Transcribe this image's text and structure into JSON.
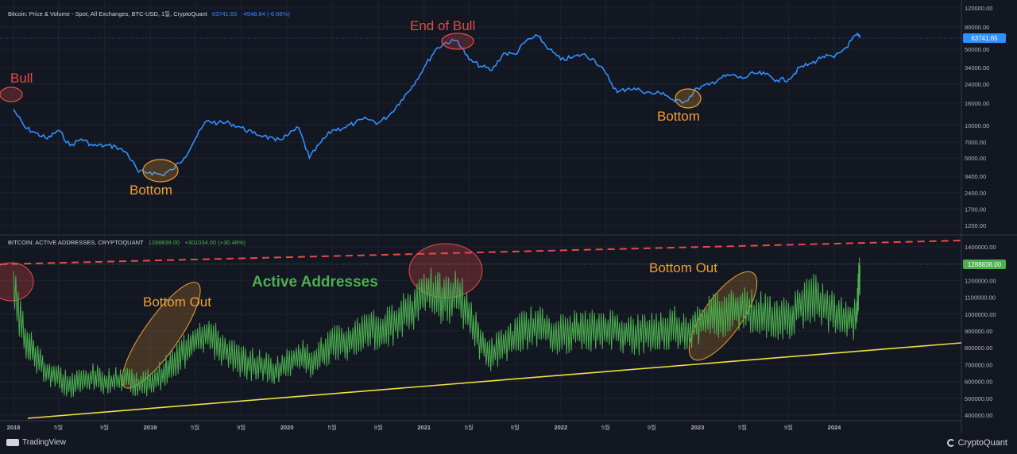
{
  "top_header": {
    "title": "Bitcoin: Price & Volume - Spot, All Exchanges, BTC-USD, 1일, CryptoQuant",
    "value": "63741.65",
    "change": "-4548.84 (-6.66%)"
  },
  "bottom_header": {
    "title": "BITCOIN: ACTIVE ADDRESSES, CRYPTOQUANT",
    "value": "1288838.00",
    "change": "+301034.00 (+30.48%)"
  },
  "annotations": {
    "bull": "Bull",
    "end_of_bull": "End of Bull",
    "bottom_2019": "Bottom",
    "bottom_2023": "Bottom",
    "bottom_out_2019": "Bottom Out",
    "bottom_out_2023": "Bottom Out",
    "active_addresses": "Active Addresses"
  },
  "footer": {
    "tradingview": "TradingView",
    "cryptoquant": "CryptoQuant"
  },
  "colors": {
    "background": "#131722",
    "price_line": "#2f8fff",
    "active_line": "#4caf50",
    "annotation_red": "#e84a4a",
    "annotation_orange": "#f0a030",
    "annotation_green": "#4caf50",
    "support_line": "#f0e040",
    "resistance_line": "#e84a4a"
  },
  "chart_data": [
    {
      "type": "line",
      "title": "Bitcoin: Price & Volume - Spot, All Exchanges, BTC-USD, 1일, CryptoQuant",
      "scale": "log",
      "ylim": [
        1000,
        120000
      ],
      "y_ticks": [
        "120000.00",
        "80000.00",
        "50000.00",
        "34000.00",
        "24000.00",
        "16000.00",
        "10000.00",
        "7000.00",
        "5000.00",
        "3400.00",
        "2400.00",
        "1700.00",
        "1200.00"
      ],
      "last_value_label": "63741.65",
      "series": [
        {
          "points": [
            [
              "2018-01-01",
              14000
            ],
            [
              "2018-02-01",
              9500
            ],
            [
              "2018-03-01",
              8500
            ],
            [
              "2018-04-01",
              7500
            ],
            [
              "2018-05-01",
              9000
            ],
            [
              "2018-06-01",
              6500
            ],
            [
              "2018-07-01",
              7500
            ],
            [
              "2018-08-01",
              6500
            ],
            [
              "2018-09-01",
              6500
            ],
            [
              "2018-10-01",
              6400
            ],
            [
              "2018-11-01",
              5500
            ],
            [
              "2018-12-01",
              3700
            ],
            [
              "2019-01-01",
              3700
            ],
            [
              "2019-02-01",
              3500
            ],
            [
              "2019-03-01",
              3900
            ],
            [
              "2019-04-01",
              5000
            ],
            [
              "2019-05-01",
              7500
            ],
            [
              "2019-06-01",
              11000
            ],
            [
              "2019-07-01",
              10500
            ],
            [
              "2019-08-01",
              10500
            ],
            [
              "2019-09-01",
              9500
            ],
            [
              "2019-10-01",
              8500
            ],
            [
              "2019-11-01",
              8000
            ],
            [
              "2019-12-01",
              7200
            ],
            [
              "2020-01-01",
              8000
            ],
            [
              "2020-02-01",
              9500
            ],
            [
              "2020-03-01",
              5000
            ],
            [
              "2020-04-01",
              7000
            ],
            [
              "2020-05-01",
              9000
            ],
            [
              "2020-06-01",
              9500
            ],
            [
              "2020-07-01",
              10500
            ],
            [
              "2020-08-01",
              11500
            ],
            [
              "2020-09-01",
              10500
            ],
            [
              "2020-10-01",
              12500
            ],
            [
              "2020-11-01",
              17000
            ],
            [
              "2020-12-01",
              23000
            ],
            [
              "2021-01-01",
              34000
            ],
            [
              "2021-02-01",
              50000
            ],
            [
              "2021-03-01",
              58000
            ],
            [
              "2021-04-01",
              60000
            ],
            [
              "2021-05-01",
              40000
            ],
            [
              "2021-06-01",
              35000
            ],
            [
              "2021-07-01",
              32000
            ],
            [
              "2021-08-01",
              46000
            ],
            [
              "2021-09-01",
              45000
            ],
            [
              "2021-10-01",
              60000
            ],
            [
              "2021-11-01",
              66000
            ],
            [
              "2021-12-01",
              50000
            ],
            [
              "2022-01-01",
              40000
            ],
            [
              "2022-02-01",
              42000
            ],
            [
              "2022-03-01",
              45000
            ],
            [
              "2022-04-01",
              40000
            ],
            [
              "2022-05-01",
              30000
            ],
            [
              "2022-06-01",
              20000
            ],
            [
              "2022-07-01",
              22000
            ],
            [
              "2022-08-01",
              21000
            ],
            [
              "2022-09-01",
              19500
            ],
            [
              "2022-10-01",
              20000
            ],
            [
              "2022-11-01",
              16500
            ],
            [
              "2022-12-01",
              16800
            ],
            [
              "2023-01-01",
              22000
            ],
            [
              "2023-02-01",
              23500
            ],
            [
              "2023-03-01",
              27000
            ],
            [
              "2023-04-01",
              29000
            ],
            [
              "2023-05-01",
              27000
            ],
            [
              "2023-06-01",
              30000
            ],
            [
              "2023-07-01",
              29500
            ],
            [
              "2023-08-01",
              26000
            ],
            [
              "2023-09-01",
              26500
            ],
            [
              "2023-10-01",
              34000
            ],
            [
              "2023-11-01",
              37000
            ],
            [
              "2023-12-01",
              43000
            ],
            [
              "2024-01-01",
              42000
            ],
            [
              "2024-02-01",
              52000
            ],
            [
              "2024-03-01",
              68000
            ],
            [
              "2024-03-10",
              63741.65
            ]
          ]
        }
      ]
    },
    {
      "type": "line",
      "title": "BITCOIN: ACTIVE ADDRESSES, CRYPTOQUANT",
      "ylim": [
        390000,
        1450000
      ],
      "y_ticks": [
        "1400000.00",
        "1300000.00",
        "1200000.00",
        "1100000.00",
        "1000000.00",
        "900000.00",
        "800000.00",
        "700000.00",
        "600000.00",
        "500000.00",
        "400000.00"
      ],
      "last_value_label": "1288838.00",
      "series": [
        {
          "points": [
            [
              "2018-01-01",
              1150000
            ],
            [
              "2018-02-01",
              850000
            ],
            [
              "2018-03-01",
              750000
            ],
            [
              "2018-04-01",
              650000
            ],
            [
              "2018-05-01",
              620000
            ],
            [
              "2018-06-01",
              580000
            ],
            [
              "2018-07-01",
              600000
            ],
            [
              "2018-08-01",
              620000
            ],
            [
              "2018-09-01",
              600000
            ],
            [
              "2018-10-01",
              600000
            ],
            [
              "2018-11-01",
              620000
            ],
            [
              "2018-12-01",
              580000
            ],
            [
              "2019-01-01",
              600000
            ],
            [
              "2019-02-01",
              640000
            ],
            [
              "2019-03-01",
              700000
            ],
            [
              "2019-04-01",
              780000
            ],
            [
              "2019-05-01",
              850000
            ],
            [
              "2019-06-01",
              880000
            ],
            [
              "2019-07-01",
              820000
            ],
            [
              "2019-08-01",
              760000
            ],
            [
              "2019-09-01",
              720000
            ],
            [
              "2019-10-01",
              700000
            ],
            [
              "2019-11-01",
              690000
            ],
            [
              "2019-12-01",
              660000
            ],
            [
              "2020-01-01",
              700000
            ],
            [
              "2020-02-01",
              760000
            ],
            [
              "2020-03-01",
              720000
            ],
            [
              "2020-04-01",
              760000
            ],
            [
              "2020-05-01",
              820000
            ],
            [
              "2020-06-01",
              820000
            ],
            [
              "2020-07-01",
              860000
            ],
            [
              "2020-08-01",
              930000
            ],
            [
              "2020-09-01",
              900000
            ],
            [
              "2020-10-01",
              920000
            ],
            [
              "2020-11-01",
              1000000
            ],
            [
              "2020-12-01",
              1020000
            ],
            [
              "2021-01-01",
              1150000
            ],
            [
              "2021-02-01",
              1100000
            ],
            [
              "2021-03-01",
              1080000
            ],
            [
              "2021-04-01",
              1120000
            ],
            [
              "2021-05-01",
              1000000
            ],
            [
              "2021-06-01",
              820000
            ],
            [
              "2021-07-01",
              760000
            ],
            [
              "2021-08-01",
              820000
            ],
            [
              "2021-09-01",
              860000
            ],
            [
              "2021-10-01",
              920000
            ],
            [
              "2021-11-01",
              920000
            ],
            [
              "2021-12-01",
              900000
            ],
            [
              "2022-01-01",
              880000
            ],
            [
              "2022-02-01",
              900000
            ],
            [
              "2022-03-01",
              900000
            ],
            [
              "2022-04-01",
              900000
            ],
            [
              "2022-05-01",
              920000
            ],
            [
              "2022-06-01",
              900000
            ],
            [
              "2022-07-01",
              880000
            ],
            [
              "2022-08-01",
              880000
            ],
            [
              "2022-09-01",
              900000
            ],
            [
              "2022-10-01",
              900000
            ],
            [
              "2022-11-01",
              930000
            ],
            [
              "2022-12-01",
              880000
            ],
            [
              "2023-01-01",
              950000
            ],
            [
              "2023-02-01",
              980000
            ],
            [
              "2023-03-01",
              1000000
            ],
            [
              "2023-04-01",
              1020000
            ],
            [
              "2023-05-01",
              1050000
            ],
            [
              "2023-06-01",
              1000000
            ],
            [
              "2023-07-01",
              1000000
            ],
            [
              "2023-08-01",
              980000
            ],
            [
              "2023-09-01",
              960000
            ],
            [
              "2023-10-01",
              1050000
            ],
            [
              "2023-11-01",
              1100000
            ],
            [
              "2023-12-01",
              1050000
            ],
            [
              "2024-01-01",
              1000000
            ],
            [
              "2024-02-01",
              950000
            ],
            [
              "2024-03-01",
              1000000
            ],
            [
              "2024-03-10",
              1288838
            ]
          ]
        }
      ],
      "trendlines": [
        {
          "name": "support",
          "points": [
            [
              "2017-12-01",
              390000
            ],
            [
              "2024-11-01",
              840000
            ]
          ]
        },
        {
          "name": "resistance",
          "points": [
            [
              "2017-12-01",
              1290000
            ],
            [
              "2024-11-01",
              1440000
            ]
          ]
        }
      ]
    }
  ],
  "x_axis_ticks": [
    "2018",
    "5월",
    "9월",
    "2019",
    "5월",
    "9월",
    "2020",
    "5월",
    "9월",
    "2021",
    "5월",
    "9월",
    "2022",
    "5월",
    "9월",
    "2023",
    "5월",
    "9월",
    "2024"
  ],
  "grid": true
}
